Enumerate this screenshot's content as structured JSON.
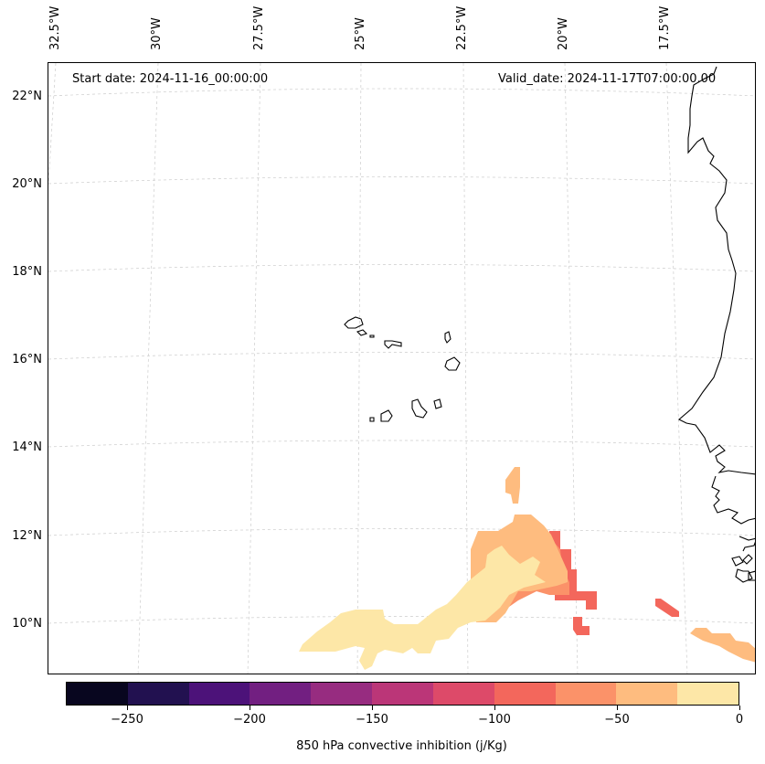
{
  "header": {
    "start_date": "Start date: 2024-11-16_00:00:00",
    "valid_date": "Valid_date: 2024-11-17T07:00:00.00"
  },
  "axes": {
    "lat_labels": [
      "22°N",
      "20°N",
      "18°N",
      "16°N",
      "14°N",
      "12°N",
      "10°N"
    ],
    "lon_labels": [
      "32.5°W",
      "30°W",
      "27.5°W",
      "25°W",
      "22.5°W",
      "20°W",
      "17.5°W"
    ]
  },
  "colorbar": {
    "title": "850 hPa convective inhibition (j/Kg)",
    "tick_labels": [
      "−250",
      "−200",
      "−150",
      "−100",
      "−50",
      "0"
    ],
    "range": [
      -275,
      0
    ],
    "bins": [
      {
        "min": -275,
        "max": -250,
        "color": "#08061f"
      },
      {
        "min": -250,
        "max": -225,
        "color": "#221150"
      },
      {
        "min": -225,
        "max": -200,
        "color": "#4c1279"
      },
      {
        "min": -200,
        "max": -175,
        "color": "#721f81"
      },
      {
        "min": -175,
        "max": -150,
        "color": "#972c80"
      },
      {
        "min": -150,
        "max": -125,
        "color": "#bb3678"
      },
      {
        "min": -125,
        "max": -100,
        "color": "#dd4a69"
      },
      {
        "min": -100,
        "max": -75,
        "color": "#f3675c"
      },
      {
        "min": -75,
        "max": -50,
        "color": "#fb9269"
      },
      {
        "min": -50,
        "max": -25,
        "color": "#febc7f"
      },
      {
        "min": -25,
        "max": 0,
        "color": "#fde7a7"
      }
    ]
  },
  "colors": {
    "cin_near_zero": "#fde7a7",
    "cin_minus_25_to_50": "#febc7f",
    "cin_minus_50_to_75": "#fb9269",
    "cin_minus_75_to_100": "#f3675c",
    "coastline": "#000000",
    "gridline": "#cccccc"
  },
  "map": {
    "region": "Cape Verde Islands and West African coast",
    "lat_range": [
      9,
      22.5
    ],
    "lon_range": [
      -32.8,
      -16.2
    ]
  }
}
